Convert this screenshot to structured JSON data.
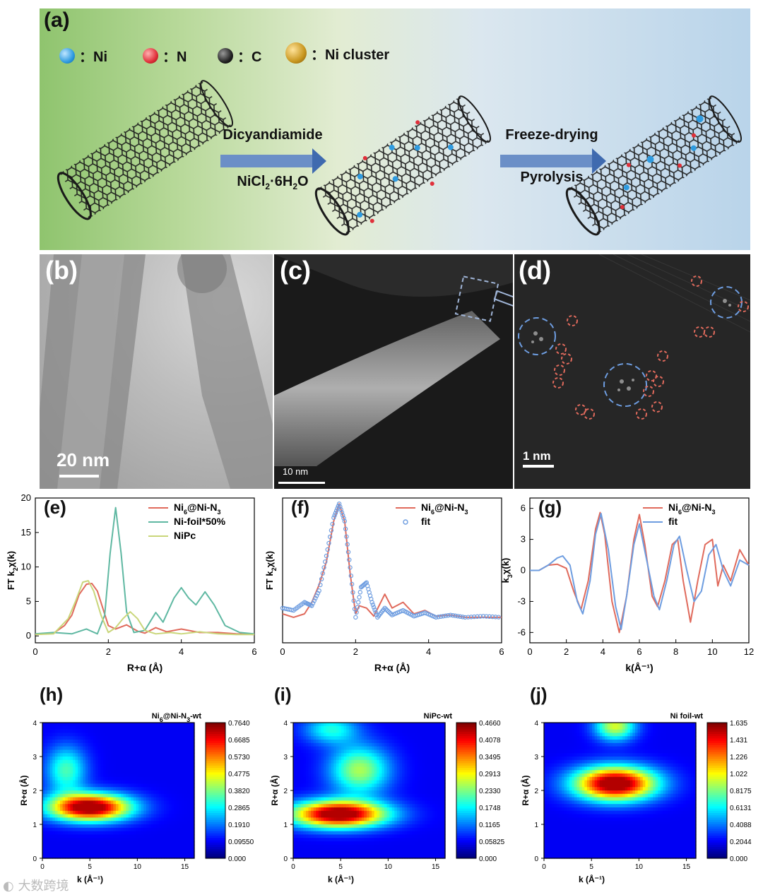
{
  "panel_a": {
    "label": "(a)",
    "legend": [
      {
        "symbol_label": "：Ni",
        "color": "#2f9be0"
      },
      {
        "symbol_label": "：N",
        "color": "#e0303a"
      },
      {
        "symbol_label": "：C",
        "color": "#222222"
      },
      {
        "symbol_label": "：Ni cluster",
        "color": "#c8961e"
      }
    ],
    "step1_top": "Dicyandiamide",
    "step1_bottom": "NiCl",
    "step1_bottom_sub1": "2",
    "step1_bottom_mid": "·6H",
    "step1_bottom_sub2": "2",
    "step1_bottom_end": "O",
    "step2_top": "Freeze-drying",
    "step2_bottom": "Pyrolysis"
  },
  "panel_b": {
    "label": "(b)",
    "scale": "20 nm"
  },
  "panel_c": {
    "label": "(c)",
    "scale": "10 nm"
  },
  "panel_d": {
    "label": "(d)",
    "scale": "1 nm"
  },
  "panel_e": {
    "label": "(e)"
  },
  "panel_f": {
    "label": "(f)"
  },
  "panel_g": {
    "label": "(g)"
  },
  "panel_h": {
    "label": "(h)"
  },
  "panel_i": {
    "label": "(i)"
  },
  "panel_j": {
    "label": "(j)"
  },
  "watermark": "大数跨境",
  "colors": {
    "red": "#e06a5c",
    "teal": "#5fb8a2",
    "olive": "#c9d67a",
    "blue": "#6e9de0"
  },
  "chart_data": [
    {
      "id": "e",
      "type": "line",
      "ylabel_parts": [
        "FT k",
        "2",
        "χ(k)"
      ],
      "xlabel": "R+α (Å)",
      "xlim": [
        0,
        6
      ],
      "ylim": [
        -1,
        20
      ],
      "xticks": [
        "0",
        "2",
        "4",
        "6"
      ],
      "yticks": [
        "0",
        "5",
        "10",
        "15",
        "20"
      ],
      "series": [
        {
          "name_parts": [
            "Ni",
            "6",
            "@Ni-N",
            "3"
          ],
          "color": "#e06a5c",
          "x": [
            0,
            0.5,
            0.8,
            1.0,
            1.2,
            1.4,
            1.55,
            1.7,
            1.85,
            2.0,
            2.2,
            2.5,
            2.8,
            3.0,
            3.3,
            3.6,
            4.0,
            4.5,
            5.0,
            5.5,
            6.0
          ],
          "y": [
            0.2,
            0.4,
            1.5,
            3.0,
            6.0,
            7.5,
            7.6,
            6.5,
            4.0,
            1.5,
            1.0,
            1.6,
            0.7,
            0.4,
            1.2,
            0.6,
            1.0,
            0.5,
            0.5,
            0.3,
            0.2
          ]
        },
        {
          "name_parts": [
            "Ni-foil*50%"
          ],
          "color": "#5fb8a2",
          "x": [
            0,
            0.5,
            1.0,
            1.4,
            1.7,
            1.9,
            2.05,
            2.2,
            2.35,
            2.5,
            2.7,
            3.0,
            3.3,
            3.5,
            3.8,
            4.0,
            4.2,
            4.4,
            4.65,
            4.9,
            5.2,
            5.6,
            6.0
          ],
          "y": [
            0.3,
            0.5,
            0.3,
            1.0,
            0.3,
            3.0,
            12.0,
            18.6,
            12.0,
            3.5,
            0.5,
            0.8,
            3.4,
            2.0,
            5.5,
            7.0,
            5.5,
            4.5,
            6.4,
            4.5,
            1.5,
            0.5,
            0.3
          ]
        },
        {
          "name_parts": [
            "NiPc"
          ],
          "color": "#c9d67a",
          "x": [
            0,
            0.5,
            0.9,
            1.1,
            1.3,
            1.45,
            1.6,
            1.8,
            2.0,
            2.2,
            2.4,
            2.6,
            2.8,
            3.0,
            3.3,
            3.7,
            4.0,
            4.5,
            5.0,
            5.5,
            6.0
          ],
          "y": [
            0.2,
            0.3,
            2.5,
            5.0,
            7.8,
            8.0,
            6.5,
            3.0,
            0.5,
            1.2,
            2.5,
            3.5,
            2.5,
            0.8,
            0.3,
            0.5,
            0.3,
            0.6,
            0.3,
            0.2,
            0.2
          ]
        }
      ]
    },
    {
      "id": "f",
      "type": "line",
      "ylabel_parts": [
        "FT k",
        "2",
        "χ(k)"
      ],
      "xlabel": "R+α (Å)",
      "xlim": [
        0,
        6
      ],
      "ylim": [
        -0.2,
        1.05
      ],
      "xticks": [
        "0",
        "2",
        "4",
        "6"
      ],
      "yticks": [],
      "series": [
        {
          "name_parts": [
            "Ni",
            "6",
            "@Ni-N",
            "3"
          ],
          "color": "#e06a5c",
          "x": [
            0,
            0.3,
            0.6,
            0.8,
            1.0,
            1.2,
            1.4,
            1.55,
            1.7,
            1.85,
            2.0,
            2.1,
            2.3,
            2.5,
            2.8,
            3.0,
            3.3,
            3.6,
            3.9,
            4.2,
            4.6,
            5.0,
            5.5,
            6.0
          ],
          "y": [
            0.05,
            0.02,
            0.05,
            0.15,
            0.3,
            0.5,
            0.85,
            1.0,
            0.85,
            0.4,
            0.05,
            0.12,
            0.1,
            0.03,
            0.22,
            0.1,
            0.15,
            0.05,
            0.08,
            0.03,
            0.04,
            0.02,
            0.02,
            0.02
          ]
        },
        {
          "name_parts": [
            "fit"
          ],
          "color": "#6e9de0",
          "marker": "circle",
          "x": [
            0,
            0.3,
            0.6,
            0.8,
            1.0,
            1.2,
            1.4,
            1.55,
            1.7,
            1.85,
            2.0,
            2.15,
            2.3,
            2.45,
            2.6,
            2.8,
            3.0,
            3.3,
            3.6,
            3.9,
            4.2,
            4.6,
            5.0,
            5.5,
            6.0
          ],
          "y": [
            0.1,
            0.08,
            0.15,
            0.12,
            0.25,
            0.55,
            0.88,
            1.0,
            0.85,
            0.45,
            0.02,
            0.28,
            0.32,
            0.15,
            0.02,
            0.1,
            0.04,
            0.08,
            0.03,
            0.06,
            0.02,
            0.04,
            0.02,
            0.03,
            0.02
          ]
        }
      ]
    },
    {
      "id": "g",
      "type": "line",
      "ylabel_parts": [
        "k",
        "3",
        "χ(k)"
      ],
      "xlabel": "k(Å⁻¹)",
      "xlim": [
        0,
        12
      ],
      "ylim": [
        -7,
        7
      ],
      "xticks": [
        "0",
        "2",
        "4",
        "6",
        "8",
        "10",
        "12"
      ],
      "yticks": [
        "-6",
        "-3",
        "0",
        "3",
        "6"
      ],
      "series": [
        {
          "name_parts": [
            "Ni",
            "6",
            "@Ni-N",
            "3"
          ],
          "color": "#e06a5c",
          "x": [
            0,
            0.5,
            1.0,
            1.5,
            2.0,
            2.4,
            2.8,
            3.2,
            3.6,
            3.85,
            4.1,
            4.5,
            4.9,
            5.3,
            5.7,
            6.0,
            6.3,
            6.7,
            7.0,
            7.4,
            7.8,
            8.1,
            8.4,
            8.8,
            9.2,
            9.6,
            10.0,
            10.3,
            10.6,
            11.0,
            11.5,
            12.0
          ],
          "y": [
            0,
            0,
            0.5,
            0.6,
            0.2,
            -2.0,
            -3.8,
            -1.0,
            4.0,
            5.6,
            3.5,
            -3.0,
            -6.0,
            -2.5,
            3.0,
            5.4,
            2.5,
            -2.5,
            -3.5,
            -1.0,
            2.5,
            3.0,
            -1.0,
            -5.0,
            -1.0,
            2.5,
            3.0,
            -1.5,
            0.5,
            -1.0,
            2.0,
            0.5
          ]
        },
        {
          "name_parts": [
            "fit"
          ],
          "color": "#6e9de0",
          "x": [
            0,
            0.5,
            1.0,
            1.5,
            1.8,
            2.2,
            2.6,
            2.9,
            3.3,
            3.6,
            3.9,
            4.3,
            4.7,
            5.0,
            5.3,
            5.7,
            6.0,
            6.4,
            6.8,
            7.1,
            7.5,
            7.9,
            8.2,
            8.6,
            9.0,
            9.4,
            9.8,
            10.2,
            10.6,
            11.0,
            11.5,
            12.0
          ],
          "y": [
            0,
            0,
            0.5,
            1.2,
            1.4,
            0.5,
            -3.0,
            -4.2,
            -1.0,
            3.5,
            5.5,
            2.0,
            -3.5,
            -5.7,
            -2.5,
            2.5,
            4.5,
            1.0,
            -2.5,
            -3.8,
            -1.0,
            2.5,
            3.3,
            0.0,
            -3.0,
            -2.0,
            1.5,
            2.5,
            0.0,
            -1.5,
            1.0,
            0.5
          ]
        }
      ]
    },
    {
      "id": "h",
      "type": "heatmap",
      "title_parts": [
        "Ni",
        "6",
        "@Ni-N",
        "3",
        "-wt"
      ],
      "xlabel": "k (Å⁻¹)",
      "ylabel": "R+α (Å)",
      "xlim": [
        0,
        16
      ],
      "ylim": [
        0,
        4
      ],
      "xticks": [
        "0",
        "5",
        "10",
        "15"
      ],
      "yticks": [
        "0",
        "1",
        "2",
        "3",
        "4"
      ],
      "colorbar": [
        "0.7640",
        "0.6685",
        "0.5730",
        "0.4775",
        "0.3820",
        "0.2865",
        "0.1910",
        "0.09550",
        "0.000"
      ],
      "peaks": [
        {
          "k": 5.0,
          "R": 1.5,
          "intensity": 1.0,
          "sk": 3.0,
          "sr": 0.28
        },
        {
          "k": 2.5,
          "R": 2.6,
          "intensity": 0.35,
          "sk": 1.5,
          "sr": 0.5
        }
      ]
    },
    {
      "id": "i",
      "type": "heatmap",
      "title_parts": [
        "NiPc-wt"
      ],
      "xlabel": "k (Å⁻¹)",
      "ylabel": "R+α (Å)",
      "xlim": [
        0,
        16
      ],
      "ylim": [
        0,
        4
      ],
      "xticks": [
        "0",
        "5",
        "10",
        "15"
      ],
      "yticks": [
        "0",
        "1",
        "2",
        "3",
        "4"
      ],
      "colorbar": [
        "0.4660",
        "0.4078",
        "0.3495",
        "0.2913",
        "0.2330",
        "0.1748",
        "0.1165",
        "0.05825",
        "0.000"
      ],
      "peaks": [
        {
          "k": 4.8,
          "R": 1.3,
          "intensity": 1.0,
          "sk": 3.5,
          "sr": 0.28
        },
        {
          "k": 7.0,
          "R": 2.6,
          "intensity": 0.45,
          "sk": 2.2,
          "sr": 0.5
        },
        {
          "k": 4.0,
          "R": 3.8,
          "intensity": 0.3,
          "sk": 2.0,
          "sr": 0.3
        }
      ]
    },
    {
      "id": "j",
      "type": "heatmap",
      "title_parts": [
        "Ni foil-wt"
      ],
      "xlabel": "k (Å⁻¹)",
      "ylabel": "R+α (Å)",
      "xlim": [
        0,
        16
      ],
      "ylim": [
        0,
        4
      ],
      "xticks": [
        "0",
        "5",
        "10",
        "15"
      ],
      "yticks": [
        "0",
        "1",
        "2",
        "3",
        "4"
      ],
      "colorbar": [
        "1.635",
        "1.431",
        "1.226",
        "1.022",
        "0.8175",
        "0.6131",
        "0.4088",
        "0.2044",
        "0.000"
      ],
      "peaks": [
        {
          "k": 7.5,
          "R": 2.2,
          "intensity": 1.0,
          "sk": 3.0,
          "sr": 0.35
        },
        {
          "k": 7.5,
          "R": 3.9,
          "intensity": 0.5,
          "sk": 1.5,
          "sr": 0.3
        }
      ]
    }
  ]
}
